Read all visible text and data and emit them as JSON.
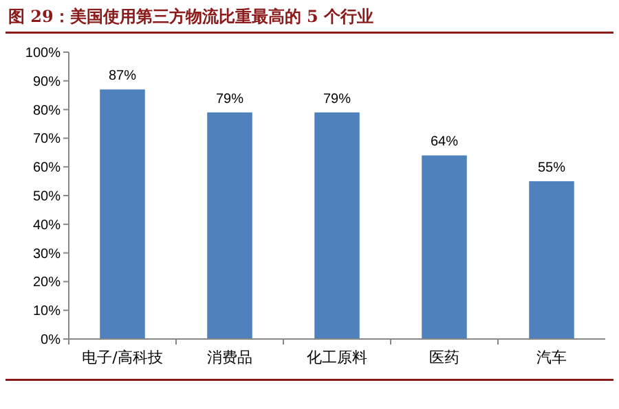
{
  "chart_data": {
    "type": "bar",
    "title": "图 29：美国使用第三方物流比重最高的 5 个行业",
    "categories": [
      "电子/高科技",
      "消费品",
      "化工原料",
      "医药",
      "汽车"
    ],
    "values": [
      87,
      79,
      79,
      64,
      55
    ],
    "value_labels": [
      "87%",
      "79%",
      "79%",
      "64%",
      "55%"
    ],
    "color": "#4f81bd",
    "ylim": [
      0,
      100
    ],
    "yticks": [
      {
        "value": 0,
        "label": "0%"
      },
      {
        "value": 10,
        "label": "10%"
      },
      {
        "value": 20,
        "label": "20%"
      },
      {
        "value": 30,
        "label": "30%"
      },
      {
        "value": 40,
        "label": "40%"
      },
      {
        "value": 50,
        "label": "50%"
      },
      {
        "value": 60,
        "label": "60%"
      },
      {
        "value": 70,
        "label": "70%"
      },
      {
        "value": 80,
        "label": "80%"
      },
      {
        "value": 90,
        "label": "90%"
      },
      {
        "value": 100,
        "label": "100%"
      }
    ],
    "grid": false
  }
}
